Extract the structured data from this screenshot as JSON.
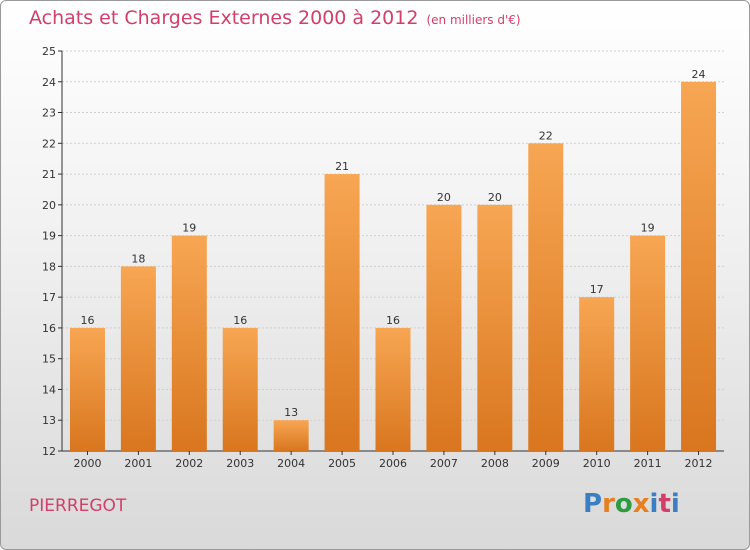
{
  "header": {
    "title": "Achats et Charges Externes 2000 à 2012",
    "subtitle": "(en milliers d'€)"
  },
  "footer": {
    "commune": "PIERREGOT",
    "logo_text": "Proxiti",
    "logo_colors": [
      "#3a7fc4",
      "#e87f1e",
      "#2e9b3f",
      "#e87f1e",
      "#3a7fc4",
      "#d1406a",
      "#3a7fc4"
    ]
  },
  "colors": {
    "title": "#d1406a",
    "bar_light": "#f7a653",
    "bar_dark": "#d9761f",
    "axis": "#333333",
    "grid": "#cfcfcf"
  },
  "chart_data": {
    "type": "bar",
    "title": "Achats et Charges Externes 2000 à 2012",
    "categories": [
      "2000",
      "2001",
      "2002",
      "2003",
      "2004",
      "2005",
      "2006",
      "2007",
      "2008",
      "2009",
      "2010",
      "2011",
      "2012"
    ],
    "values": [
      16,
      18,
      19,
      16,
      13,
      21,
      16,
      20,
      20,
      22,
      17,
      19,
      24
    ],
    "ylim": [
      12,
      25
    ],
    "yticks": [
      12,
      13,
      14,
      15,
      16,
      17,
      18,
      19,
      20,
      21,
      22,
      23,
      24,
      25
    ],
    "grid": true,
    "data_labels": true
  }
}
